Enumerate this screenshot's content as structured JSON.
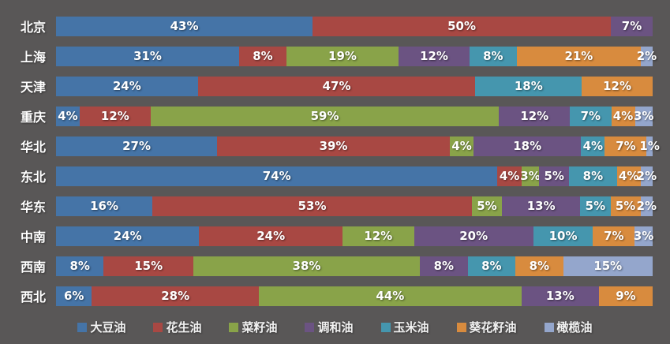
{
  "chart_data": {
    "type": "bar",
    "orientation": "horizontal",
    "stacked": true,
    "unit": "%",
    "background_color": "#595757",
    "label_color": "#ffffff",
    "grid": false,
    "legend_position": "bottom",
    "categories": [
      "北京",
      "上海",
      "天津",
      "重庆",
      "华北",
      "东北",
      "华东",
      "中南",
      "西南",
      "西北"
    ],
    "series": [
      {
        "name": "大豆油",
        "color": "#4574A7",
        "values": [
          43,
          31,
          24,
          4,
          27,
          74,
          16,
          24,
          8,
          6
        ]
      },
      {
        "name": "花生油",
        "color": "#A84843",
        "values": [
          50,
          8,
          47,
          12,
          39,
          4,
          53,
          24,
          15,
          28
        ]
      },
      {
        "name": "菜籽油",
        "color": "#89A349",
        "values": [
          0,
          19,
          0,
          59,
          4,
          3,
          5,
          12,
          38,
          44
        ]
      },
      {
        "name": "调和油",
        "color": "#6B5382",
        "values": [
          7,
          12,
          0,
          12,
          18,
          5,
          13,
          20,
          8,
          13
        ]
      },
      {
        "name": "玉米油",
        "color": "#4596AE",
        "values": [
          0,
          8,
          18,
          7,
          4,
          8,
          5,
          10,
          8,
          0
        ]
      },
      {
        "name": "葵花籽油",
        "color": "#D88B3E",
        "values": [
          0,
          21,
          12,
          4,
          7,
          4,
          5,
          7,
          8,
          9
        ]
      },
      {
        "name": "橄榄油",
        "color": "#94A6CC",
        "values": [
          0,
          2,
          0,
          3,
          1,
          2,
          2,
          3,
          15,
          0
        ]
      }
    ]
  }
}
